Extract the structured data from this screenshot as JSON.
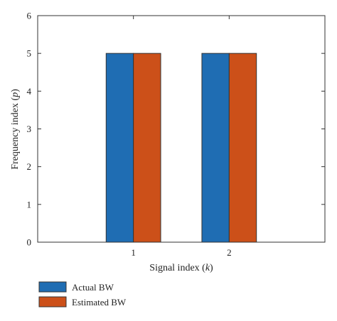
{
  "chart_data": {
    "type": "bar",
    "categories": [
      "1",
      "2"
    ],
    "series": [
      {
        "name": "Actual BW",
        "values": [
          5,
          5
        ]
      },
      {
        "name": "Estimated BW",
        "values": [
          5,
          5
        ]
      }
    ],
    "xlabel": {
      "prefix": "Signal index (",
      "variable": "k",
      "suffix": ")"
    },
    "ylabel": {
      "prefix": "Frequency index (",
      "variable": "p",
      "suffix": ")"
    },
    "ylim": [
      0,
      6
    ],
    "yticks": [
      "0",
      "1",
      "2",
      "3",
      "4",
      "5",
      "6"
    ],
    "xlim": [
      0,
      3
    ],
    "grid": false,
    "legend_position": "below-left",
    "colors": {
      "Actual BW": "#1f6db3",
      "Estimated BW": "#cc5019",
      "edge": "#333333",
      "axis": "#333333"
    }
  }
}
